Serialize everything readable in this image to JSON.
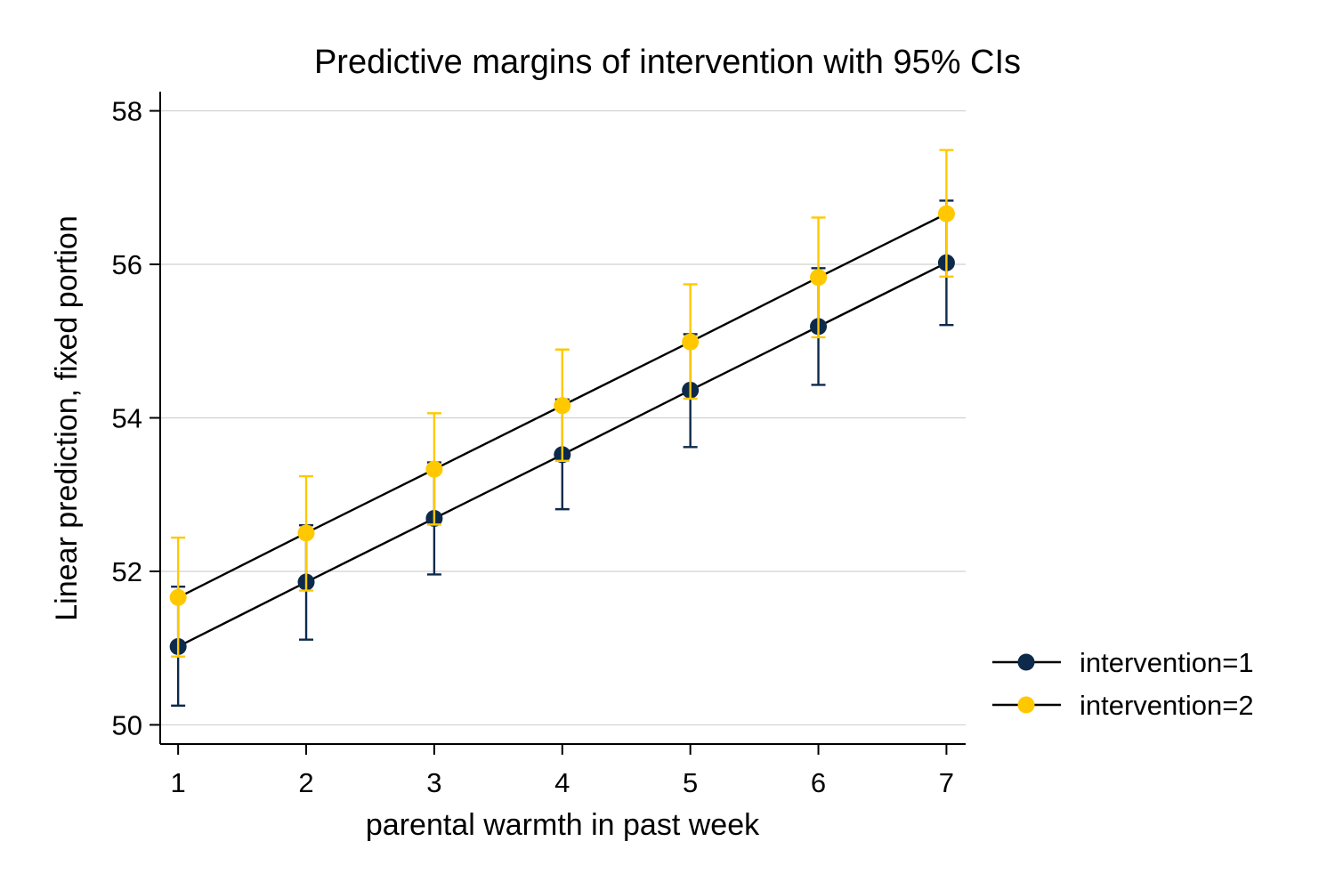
{
  "chart_data": {
    "type": "line",
    "title": "Predictive margins of intervention with 95% CIs",
    "xlabel": "parental warmth in past week",
    "ylabel": "Linear prediction, fixed portion",
    "x": [
      1,
      2,
      3,
      4,
      5,
      6,
      7
    ],
    "x_tick_labels": [
      "1",
      "2",
      "3",
      "4",
      "5",
      "6",
      "7"
    ],
    "xlim": [
      0.86,
      7.15
    ],
    "ylim": [
      49.75,
      58.25
    ],
    "y_ticks": [
      50,
      52,
      54,
      56,
      58
    ],
    "y_tick_labels": [
      "50",
      "52",
      "54",
      "56",
      "58"
    ],
    "grid": "horizontal",
    "legend_position": "right",
    "series": [
      {
        "name": "intervention=1",
        "color": "#0d2a4a",
        "values": [
          51.02,
          51.86,
          52.69,
          53.52,
          54.36,
          55.19,
          56.02
        ],
        "ci_low": [
          50.25,
          51.11,
          51.96,
          52.81,
          53.62,
          54.43,
          55.21
        ],
        "ci_high": [
          51.8,
          52.6,
          53.42,
          54.24,
          55.09,
          55.95,
          56.83
        ]
      },
      {
        "name": "intervention=2",
        "color": "#ffc800",
        "values": [
          51.66,
          52.5,
          53.33,
          54.16,
          54.99,
          55.83,
          56.66
        ],
        "ci_low": [
          50.89,
          51.75,
          52.61,
          53.44,
          54.25,
          55.05,
          55.84
        ],
        "ci_high": [
          52.44,
          53.24,
          54.06,
          54.89,
          55.74,
          56.61,
          57.49
        ]
      }
    ]
  }
}
